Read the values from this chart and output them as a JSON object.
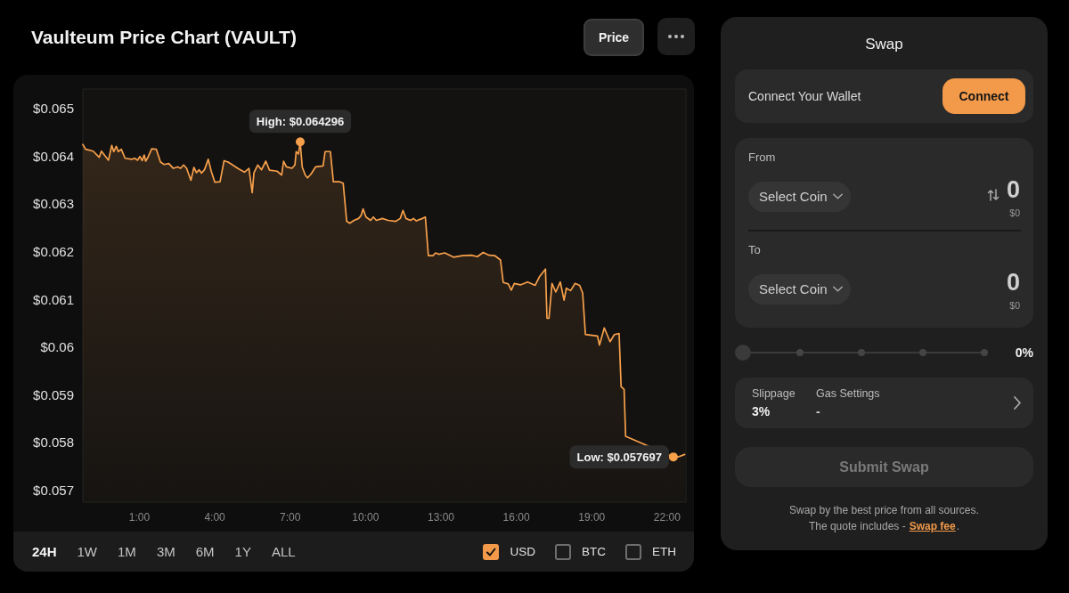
{
  "chart_data": [
    {
      "type": "area",
      "title": "Vaulteum Price Chart (VAULT)",
      "color": "#f7a04b",
      "grid": false,
      "marker": "none",
      "x": [
        -1.25,
        -1.14,
        -0.84,
        -0.6,
        -0.51,
        -0.23,
        -0.1,
        -0.02,
        0.08,
        0.16,
        0.28,
        0.43,
        0.69,
        0.81,
        0.93,
        1.02,
        1.11,
        1.19,
        1.25,
        1.34,
        1.49,
        1.67,
        1.84,
        1.99,
        2.17,
        2.35,
        2.52,
        2.64,
        2.76,
        2.88,
        3.05,
        3.17,
        3.27,
        3.38,
        3.47,
        3.59,
        3.74,
        3.86,
        4.0,
        4.21,
        4.37,
        4.53,
        4.71,
        4.94,
        5.18,
        5.36,
        5.49,
        5.56,
        5.71,
        5.86,
        6.03,
        6.18,
        6.48,
        6.66,
        6.74,
        6.85,
        7.07,
        7.19,
        7.24,
        7.33,
        7.4,
        7.48,
        7.6,
        7.69,
        7.83,
        8.01,
        8.31,
        8.39,
        8.6,
        8.72,
        8.96,
        9.11,
        9.25,
        9.37,
        9.54,
        9.72,
        9.82,
        9.9,
        10.02,
        10.2,
        10.31,
        10.43,
        10.67,
        10.9,
        11.2,
        11.38,
        11.49,
        11.61,
        11.79,
        11.91,
        12.02,
        12.26,
        12.38,
        12.5,
        12.68,
        12.79,
        12.91,
        13.15,
        13.5,
        13.85,
        14.21,
        14.45,
        14.68,
        14.92,
        15.15,
        15.37,
        15.48,
        15.68,
        15.8,
        15.92,
        16.16,
        16.45,
        16.75,
        16.92,
        17.16,
        17.22,
        17.3,
        17.42,
        17.57,
        17.75,
        17.9,
        17.99,
        18.16,
        18.34,
        18.52,
        18.64,
        18.75,
        19.23,
        19.31,
        19.5,
        19.73,
        19.9,
        20.09,
        20.17,
        20.29,
        20.35,
        22.25,
        22.45,
        22.7
      ],
      "values": [
        0.06424,
        0.06414,
        0.0641,
        0.06397,
        0.0641,
        0.06391,
        0.06422,
        0.06409,
        0.0642,
        0.06409,
        0.06414,
        0.06395,
        0.06393,
        0.06395,
        0.06391,
        0.06399,
        0.0639,
        0.06402,
        0.06389,
        0.06397,
        0.06415,
        0.06414,
        0.06387,
        0.06382,
        0.06384,
        0.06374,
        0.06377,
        0.06374,
        0.06381,
        0.06374,
        0.06349,
        0.06376,
        0.06365,
        0.06371,
        0.06364,
        0.06371,
        0.06393,
        0.06368,
        0.06345,
        0.06346,
        0.0639,
        0.06387,
        0.06381,
        0.06373,
        0.06366,
        0.06374,
        0.06323,
        0.06365,
        0.06381,
        0.06371,
        0.06389,
        0.0637,
        0.06368,
        0.0636,
        0.06389,
        0.06377,
        0.06374,
        0.06381,
        0.06409,
        0.06404,
        0.064296,
        0.06377,
        0.0636,
        0.06354,
        0.06362,
        0.06377,
        0.06379,
        0.06409,
        0.06409,
        0.06346,
        0.06346,
        0.06343,
        0.06263,
        0.06259,
        0.06265,
        0.06269,
        0.06275,
        0.06289,
        0.06272,
        0.06265,
        0.06272,
        0.06265,
        0.06269,
        0.06265,
        0.06263,
        0.06269,
        0.06286,
        0.06269,
        0.06265,
        0.06269,
        0.06264,
        0.06269,
        0.06272,
        0.06191,
        0.06191,
        0.06197,
        0.06194,
        0.06197,
        0.06188,
        0.06191,
        0.06192,
        0.06189,
        0.06198,
        0.06192,
        0.06191,
        0.06182,
        0.06135,
        0.06132,
        0.06119,
        0.06133,
        0.0613,
        0.06136,
        0.06129,
        0.06147,
        0.06163,
        0.0606,
        0.0606,
        0.06133,
        0.06115,
        0.06136,
        0.06098,
        0.06123,
        0.06118,
        0.06133,
        0.06129,
        0.06113,
        0.06026,
        0.06023,
        0.06004,
        0.0604,
        0.06011,
        0.06026,
        0.06028,
        0.05917,
        0.05911,
        0.05813,
        0.057697,
        0.0577,
        0.05775
      ],
      "xlim": [
        -1.25,
        22.75
      ],
      "xticks": [
        {
          "value": 1,
          "label": "1:00"
        },
        {
          "value": 4,
          "label": "4:00"
        },
        {
          "value": 7,
          "label": "7:00"
        },
        {
          "value": 10,
          "label": "10:00"
        },
        {
          "value": 13,
          "label": "13:00"
        },
        {
          "value": 16,
          "label": "16:00"
        },
        {
          "value": 19,
          "label": "19:00"
        },
        {
          "value": 22,
          "label": "22:00"
        }
      ],
      "ylim": [
        0.05675,
        0.0654
      ],
      "yticks": [
        {
          "value": 0.057,
          "label": "$0.057"
        },
        {
          "value": 0.058,
          "label": "$0.058"
        },
        {
          "value": 0.059,
          "label": "$0.059"
        },
        {
          "value": 0.06,
          "label": "$0.06"
        },
        {
          "value": 0.061,
          "label": "$0.061"
        },
        {
          "value": 0.062,
          "label": "$0.062"
        },
        {
          "value": 0.063,
          "label": "$0.063"
        },
        {
          "value": 0.064,
          "label": "$0.064"
        },
        {
          "value": 0.065,
          "label": "$0.065"
        }
      ],
      "annotations": [
        {
          "text": "High: $0.064296",
          "x": 7.4,
          "y": 0.064296
        },
        {
          "text": "Low: $0.057697",
          "x": 22.25,
          "y": 0.057697
        },
        "Price",
        "24H",
        "1W",
        "1M",
        "3M",
        "6M",
        "1Y",
        "ALL",
        "USD",
        "BTC",
        "ETH"
      ]
    },
    {
      "type": "other",
      "title": "Swap",
      "annotations": [
        "Connect Your Wallet",
        "Connect",
        "From",
        "Select Coin",
        "0",
        "$0",
        "To",
        "Select Coin",
        "0",
        "$0",
        "0%",
        "Slippage",
        "3%",
        "Gas Settings",
        "-",
        "Submit Swap",
        "Swap by the best price from all sources.",
        "The quote includes -",
        "Swap fee",
        "."
      ]
    }
  ]
}
